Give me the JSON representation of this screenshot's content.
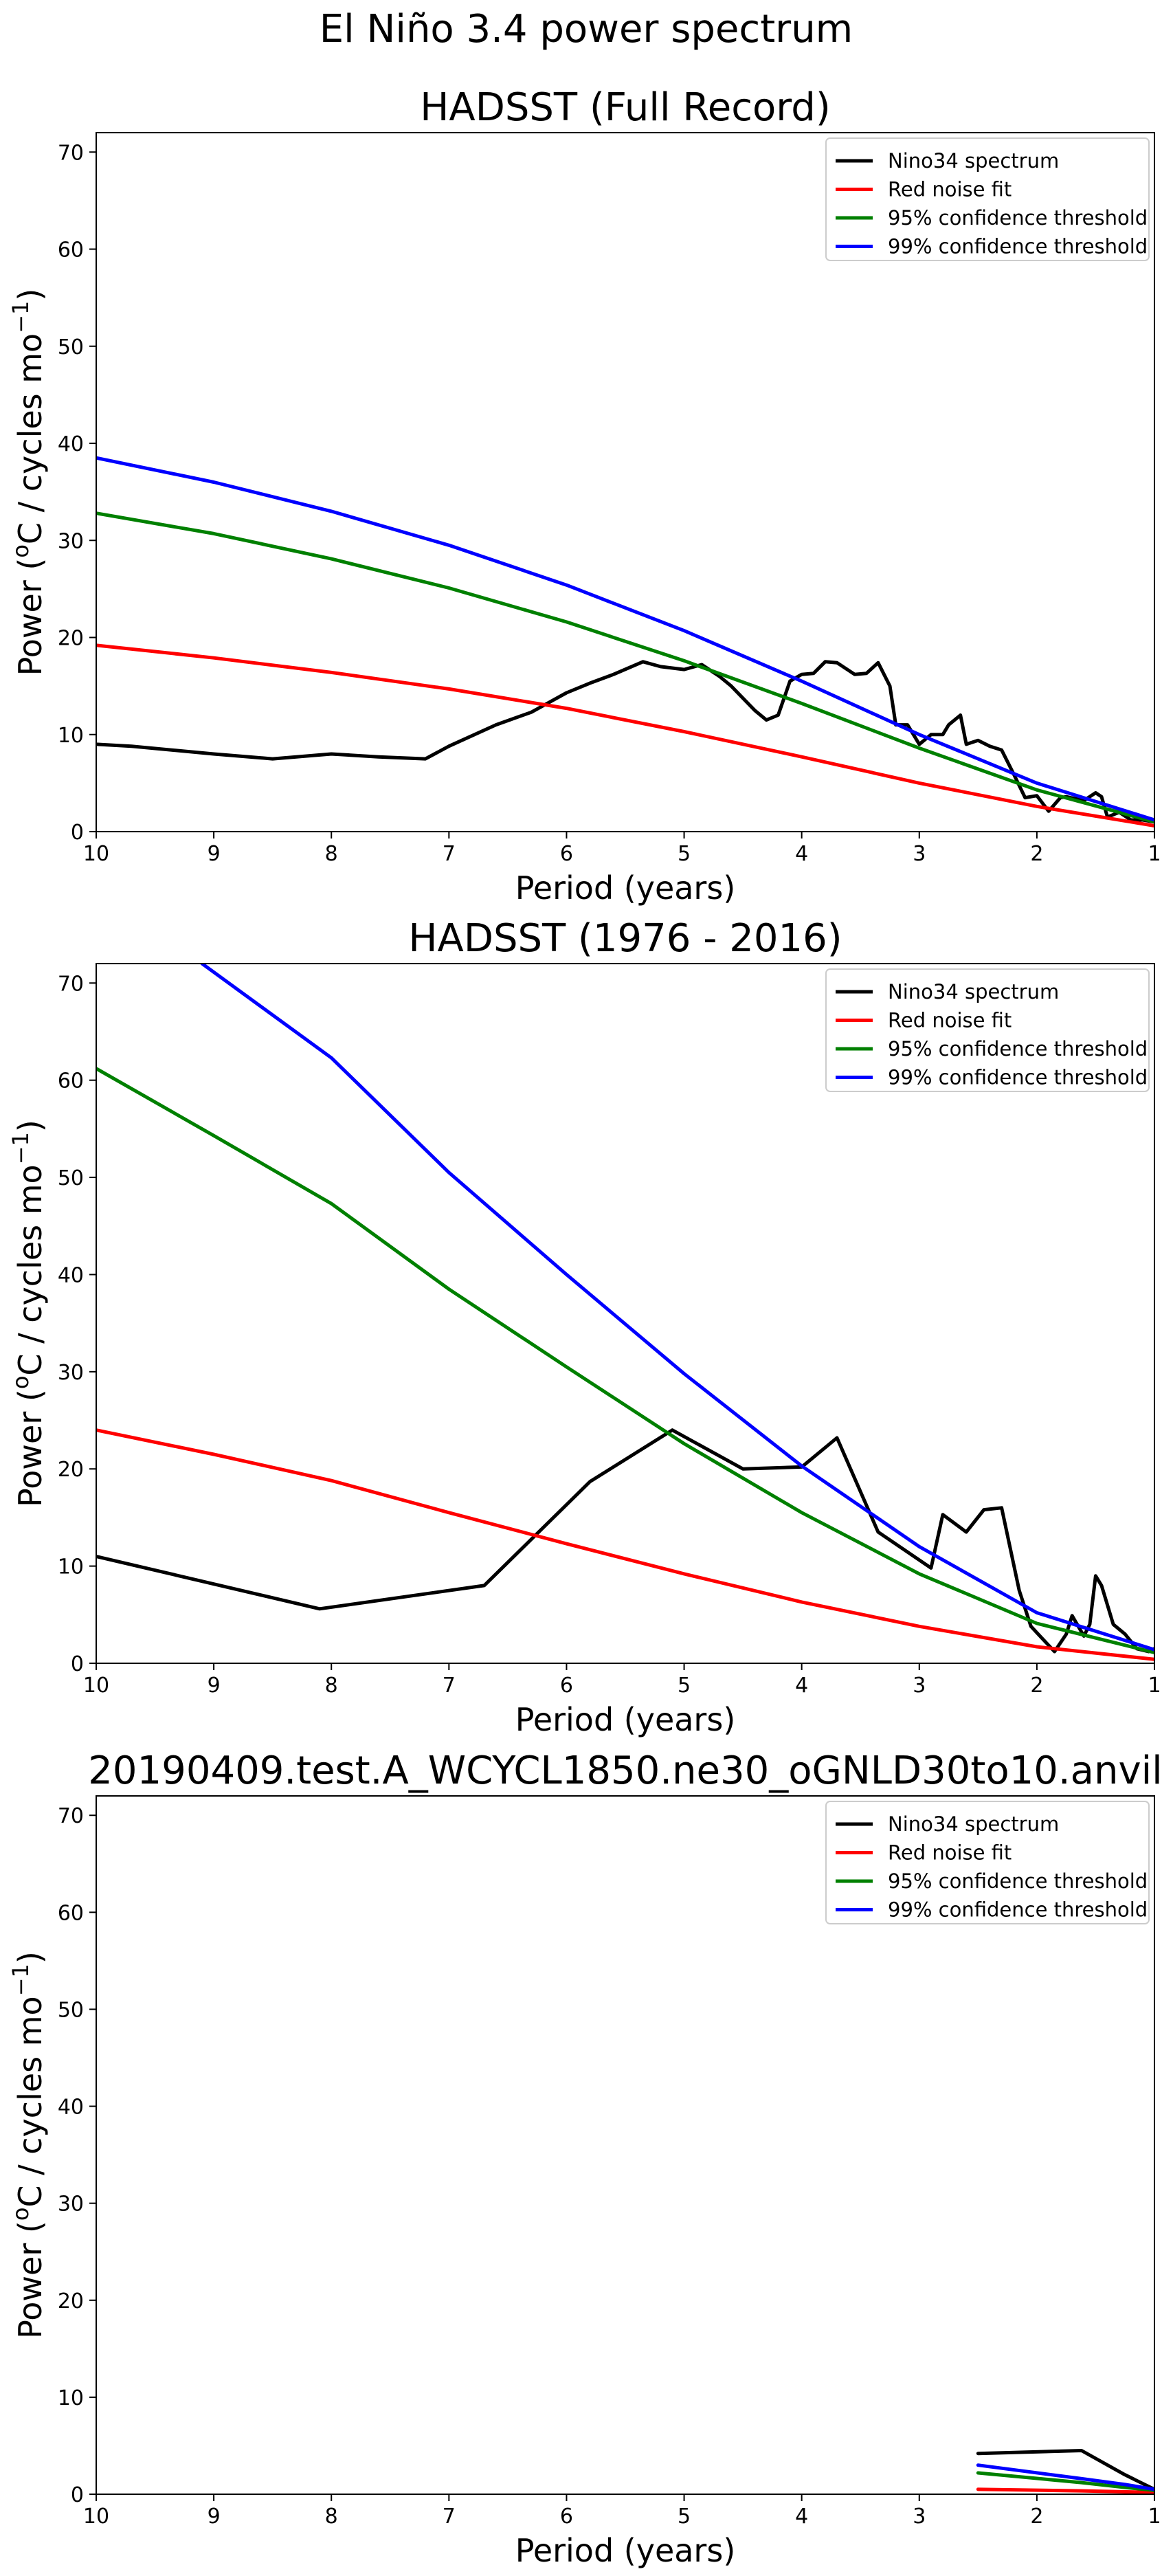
{
  "suptitle": "El Niño 3.4 power spectrum",
  "legend": {
    "entries": [
      {
        "label": "Nino34 spectrum",
        "color": "#000000"
      },
      {
        "label": "Red noise fit",
        "color": "#ff0000"
      },
      {
        "label": "95% confidence threshold",
        "color": "#008000"
      },
      {
        "label": "99% confidence threshold",
        "color": "#0000ff"
      }
    ],
    "placement": "top-right"
  },
  "chart_data": [
    {
      "type": "line",
      "title": "HADSST (Full Record)",
      "xlabel": "Period (years)",
      "ylabel": "Power (oC / cycles mo-1)",
      "xlim": [
        10,
        1
      ],
      "ylim": [
        0,
        72
      ],
      "xticks": [
        10,
        9,
        8,
        7,
        6,
        5,
        4,
        3,
        2,
        1
      ],
      "yticks": [
        0,
        10,
        20,
        30,
        40,
        50,
        60,
        70
      ],
      "grid": false,
      "series": [
        {
          "name": "Nino34 spectrum",
          "color": "#000000",
          "x": [
            10,
            9.7,
            9,
            8.5,
            8,
            7.6,
            7.2,
            7,
            6.6,
            6.3,
            6,
            5.8,
            5.6,
            5.35,
            5.2,
            5,
            4.85,
            4.7,
            4.6,
            4.4,
            4.3,
            4.2,
            4.1,
            4,
            3.9,
            3.8,
            3.7,
            3.55,
            3.45,
            3.35,
            3.25,
            3.2,
            3.1,
            3,
            2.9,
            2.8,
            2.75,
            2.65,
            2.6,
            2.5,
            2.4,
            2.3,
            2.2,
            2.1,
            2.0,
            1.9,
            1.8,
            1.75,
            1.6,
            1.5,
            1.45,
            1.4,
            1.3,
            1.2,
            1.1,
            1.0
          ],
          "y": [
            9,
            8.8,
            8,
            7.5,
            8,
            7.7,
            7.5,
            8.8,
            11,
            12.3,
            14.3,
            15.3,
            16.2,
            17.5,
            17,
            16.7,
            17.2,
            16,
            15,
            12.5,
            11.5,
            12,
            15.5,
            16.2,
            16.3,
            17.5,
            17.4,
            16.2,
            16.3,
            17.4,
            15,
            11,
            11,
            9,
            10,
            10,
            11,
            12,
            9,
            9.4,
            8.8,
            8.4,
            6,
            3.5,
            3.7,
            2.1,
            3.5,
            3.6,
            3.2,
            4,
            3.6,
            1.5,
            2,
            1.2,
            1.2,
            1.0
          ]
        },
        {
          "name": "Red noise fit",
          "color": "#ff0000",
          "x": [
            10,
            9,
            8,
            7,
            6,
            5,
            4,
            3,
            2,
            1
          ],
          "y": [
            19.2,
            17.9,
            16.4,
            14.7,
            12.7,
            10.3,
            7.7,
            5,
            2.6,
            0.6
          ]
        },
        {
          "name": "95% confidence threshold",
          "color": "#008000",
          "x": [
            10,
            9,
            8,
            7,
            6,
            5,
            4,
            3,
            2,
            1
          ],
          "y": [
            32.8,
            30.7,
            28.1,
            25.1,
            21.6,
            17.6,
            13.2,
            8.6,
            4.3,
            1.0
          ]
        },
        {
          "name": "99% confidence threshold",
          "color": "#0000ff",
          "x": [
            10,
            9,
            8,
            7,
            6,
            5,
            4,
            3,
            2,
            1
          ],
          "y": [
            38.5,
            36,
            33,
            29.5,
            25.4,
            20.7,
            15.5,
            10,
            5,
            1.2
          ]
        }
      ]
    },
    {
      "type": "line",
      "title": "HADSST (1976 - 2016)",
      "xlabel": "Period (years)",
      "ylabel": "Power (oC / cycles mo-1)",
      "xlim": [
        10,
        1
      ],
      "ylim": [
        0,
        72
      ],
      "xticks": [
        10,
        9,
        8,
        7,
        6,
        5,
        4,
        3,
        2,
        1
      ],
      "yticks": [
        0,
        10,
        20,
        30,
        40,
        50,
        60,
        70
      ],
      "grid": false,
      "series": [
        {
          "name": "Nino34 spectrum",
          "color": "#000000",
          "x": [
            10,
            8.1,
            6.7,
            5.8,
            5.1,
            4.5,
            4.0,
            3.7,
            3.35,
            2.9,
            2.8,
            2.6,
            2.45,
            2.3,
            2.15,
            2.05,
            1.95,
            1.85,
            1.75,
            1.7,
            1.6,
            1.55,
            1.5,
            1.45,
            1.35,
            1.25,
            1.15,
            1.05,
            1.0
          ],
          "y": [
            11,
            5.6,
            8,
            18.7,
            24,
            20,
            20.2,
            23.2,
            13.5,
            9.8,
            15.3,
            13.5,
            15.8,
            16,
            7.5,
            3.8,
            2.5,
            1.2,
            3,
            4.9,
            2.8,
            4,
            9,
            8,
            4,
            3,
            1.5,
            1.2,
            1.5
          ]
        },
        {
          "name": "Red noise fit",
          "color": "#ff0000",
          "x": [
            10,
            9,
            8,
            7,
            6,
            5,
            4,
            3,
            2,
            1
          ],
          "y": [
            24,
            21.5,
            18.8,
            15.5,
            12.3,
            9.2,
            6.3,
            3.8,
            1.7,
            0.4
          ]
        },
        {
          "name": "95% confidence threshold",
          "color": "#008000",
          "x": [
            10,
            9,
            8,
            7,
            6,
            5,
            4,
            3,
            2,
            1
          ],
          "y": [
            61.2,
            54.3,
            47.3,
            38.5,
            30.5,
            22.6,
            15.5,
            9.2,
            4.1,
            1.1
          ]
        },
        {
          "name": "99% confidence threshold",
          "color": "#0000ff",
          "x": [
            9.1,
            8,
            7,
            6,
            5,
            4,
            3,
            2,
            1
          ],
          "y": [
            72,
            62.3,
            50.5,
            40,
            29.8,
            20.3,
            12,
            5.2,
            1.4
          ]
        }
      ]
    },
    {
      "type": "line",
      "title": "20190409.test.A_WCYCL1850.ne30_oGNLD30to10.anvil",
      "xlabel": "Period (years)",
      "ylabel": "Power (oC / cycles mo-1)",
      "xlim": [
        10,
        1
      ],
      "ylim": [
        0,
        72
      ],
      "xticks": [
        10,
        9,
        8,
        7,
        6,
        5,
        4,
        3,
        2,
        1
      ],
      "yticks": [
        0,
        10,
        20,
        30,
        40,
        50,
        60,
        70
      ],
      "grid": false,
      "series": [
        {
          "name": "Nino34 spectrum",
          "color": "#000000",
          "x": [
            2.5,
            1.62,
            1.25,
            1.0
          ],
          "y": [
            4.2,
            4.5,
            2.0,
            0.5
          ]
        },
        {
          "name": "Red noise fit",
          "color": "#ff0000",
          "x": [
            2.5,
            1.62,
            1.25,
            1.0
          ],
          "y": [
            0.5,
            0.35,
            0.25,
            0.2
          ]
        },
        {
          "name": "95% confidence threshold",
          "color": "#008000",
          "x": [
            2.5,
            1.62,
            1.25,
            1.0
          ],
          "y": [
            2.2,
            1.2,
            0.7,
            0.4
          ]
        },
        {
          "name": "99% confidence threshold",
          "color": "#0000ff",
          "x": [
            2.5,
            1.62,
            1.25,
            1.0
          ],
          "y": [
            3.0,
            1.6,
            1.0,
            0.5
          ]
        }
      ]
    }
  ]
}
